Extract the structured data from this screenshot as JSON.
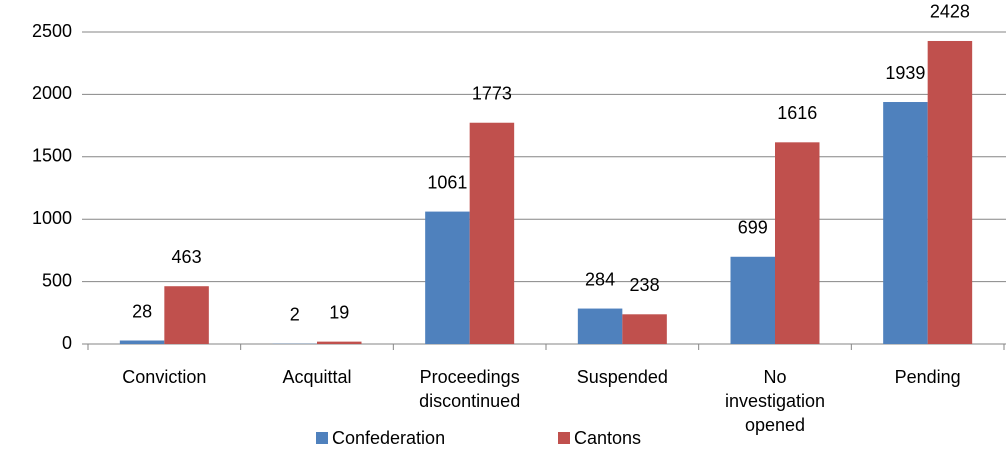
{
  "chart_data": {
    "type": "bar",
    "categories": [
      "Conviction",
      "Acquittal",
      "Proceedings discontinued",
      "Suspended",
      "No investigation opened",
      "Pending"
    ],
    "series": [
      {
        "name": "Confederation",
        "color": "#4f81bd",
        "values": [
          28,
          2,
          1061,
          284,
          699,
          1939
        ]
      },
      {
        "name": "Cantons",
        "color": "#c0504d",
        "values": [
          463,
          19,
          1773,
          238,
          1616,
          2428
        ]
      }
    ],
    "ylim": [
      0,
      2500
    ],
    "yticks": [
      0,
      500,
      1000,
      1500,
      2000,
      2500
    ],
    "grid": true,
    "legend": "bottom"
  }
}
